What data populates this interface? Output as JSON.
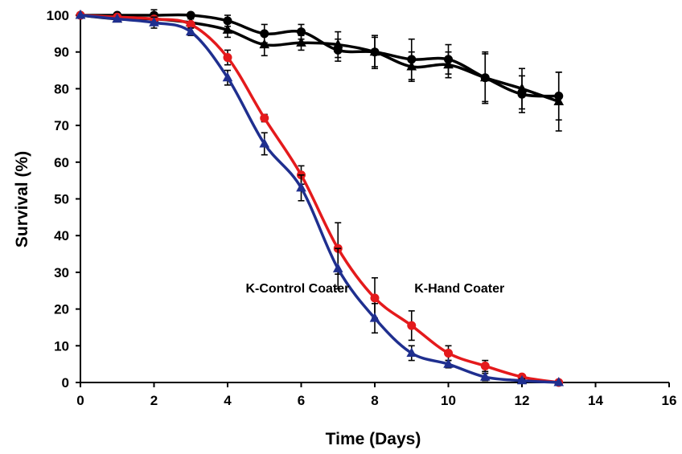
{
  "chart_data": {
    "type": "line",
    "title": "",
    "xlabel": "Time (Days)",
    "ylabel": "Survival (%)",
    "xlim": [
      0,
      16
    ],
    "ylim": [
      0,
      100
    ],
    "xticks": [
      0,
      2,
      4,
      6,
      8,
      10,
      12,
      14,
      16
    ],
    "yticks": [
      0,
      10,
      20,
      30,
      40,
      50,
      60,
      70,
      80,
      90,
      100
    ],
    "grid": false,
    "legend": "none",
    "x": [
      0,
      1,
      2,
      3,
      4,
      5,
      6,
      7,
      8,
      9,
      10,
      11,
      12,
      13
    ],
    "series": [
      {
        "color": "#000000",
        "marker": "circle",
        "values": [
          100,
          100,
          100,
          100,
          98.5,
          95,
          95.5,
          90.5,
          90,
          88,
          88,
          83,
          78.5,
          78
        ],
        "errors": [
          0,
          0,
          1.5,
          0,
          1.5,
          2.5,
          2,
          3,
          4.5,
          5.5,
          4,
          7,
          5,
          6.5
        ]
      },
      {
        "color": "#000000",
        "marker": "triangle",
        "values": [
          100,
          99,
          99,
          98,
          96,
          92,
          92.5,
          92,
          90,
          86,
          86.5,
          83,
          80,
          76.5
        ],
        "errors": [
          0,
          0.5,
          1.5,
          1,
          2,
          3,
          2,
          3.5,
          4,
          4,
          3.5,
          6.5,
          5.5,
          8
        ]
      },
      {
        "color": "#e41a1c",
        "marker": "circle",
        "values": [
          100,
          99.5,
          99,
          97.5,
          88.5,
          72,
          56.5,
          36.5,
          23,
          15.5,
          8,
          4.5,
          1.5,
          0
        ],
        "errors": [
          0,
          0,
          0,
          0.5,
          2,
          1,
          2.5,
          7,
          5.5,
          4,
          2,
          1.5,
          0.5,
          0
        ]
      },
      {
        "color": "#1f2f8f",
        "marker": "triangle",
        "values": [
          100,
          99,
          98,
          95.5,
          83,
          65,
          53,
          31,
          17.5,
          8,
          5,
          1.5,
          0.5,
          0
        ],
        "errors": [
          0,
          0,
          1.5,
          1,
          2,
          3,
          3.5,
          5.5,
          4,
          2,
          1,
          1,
          0.5,
          0
        ]
      }
    ],
    "annotations": [
      {
        "text": "K-Control Coater",
        "x": 5.9,
        "y": 24.5
      },
      {
        "text": "K-Hand Coater",
        "x": 10.3,
        "y": 24.5
      }
    ]
  }
}
